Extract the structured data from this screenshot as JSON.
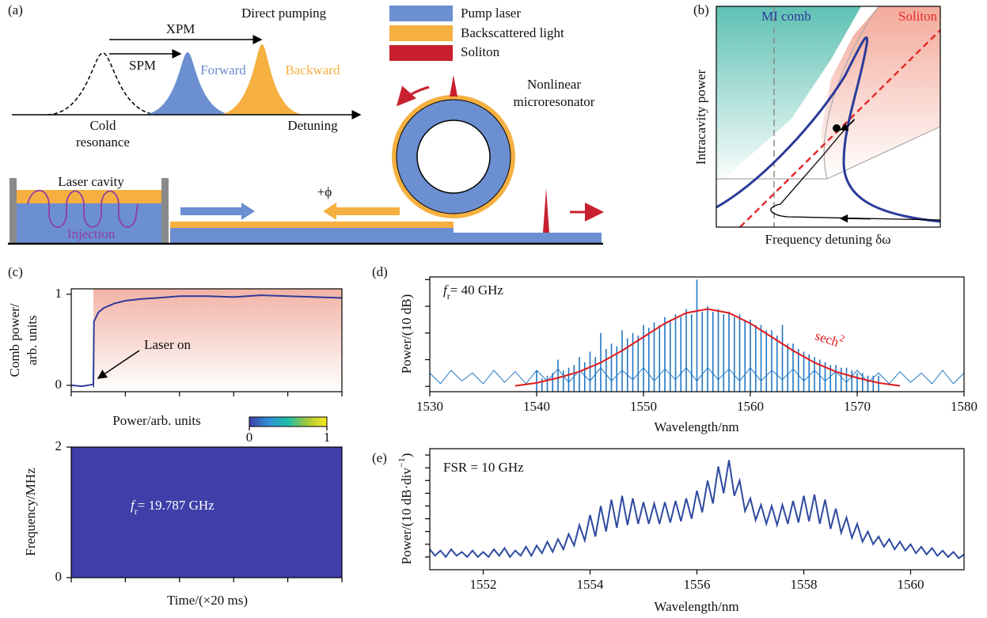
{
  "diagram_a": {
    "panel_label": "(a)",
    "title": "Direct pumping",
    "xpm": "XPM",
    "spm": "SPM",
    "forward": "Forward",
    "backward": "Backward",
    "cold": "Cold",
    "resonance": "resonance",
    "detuning": "Detuning",
    "legend": [
      "Pump laser",
      "Backscattered light",
      "Soliton"
    ],
    "ring_label": [
      "Nonlinear",
      "microresonator"
    ],
    "cavity": "Laser cavity",
    "injection": "Injection",
    "phase": "+ϕ"
  },
  "chart_data": [
    {
      "type": "schematic",
      "panel_label": "(b)",
      "xlabel": "Frequency detuning δω",
      "ylabel": "Intracavity power",
      "regions": [
        "MI comb",
        "Soliton"
      ]
    },
    {
      "type": "line",
      "panel_label": "(c)",
      "ylabel": [
        "Comb power/",
        "arb. units"
      ],
      "annotation": "Laser on",
      "x": [
        0,
        0.2,
        0.4,
        0.41,
        0.42,
        0.5,
        0.6,
        0.8,
        1.0,
        1.3,
        1.6,
        2.0,
        2.5,
        3.0,
        3.5,
        4.0,
        4.5,
        5.0
      ],
      "values": [
        0,
        -0.01,
        0.01,
        0,
        0.7,
        0.8,
        0.85,
        0.9,
        0.93,
        0.95,
        0.96,
        0.98,
        0.98,
        0.97,
        0.99,
        0.98,
        0.97,
        0.96
      ],
      "color": "#2f3a99",
      "highlight": {
        "x": 0.41,
        "color": "#f2b3a6"
      },
      "xlim": [
        0,
        5
      ],
      "xticks": [
        0,
        1,
        2,
        3,
        4,
        5
      ],
      "ylim": [
        -0.07,
        1.06
      ],
      "yticks": [
        0,
        1
      ]
    },
    {
      "type": "heatmap",
      "ylabel": "Frequency/MHz",
      "xlabel": "Time/(×20 ms)",
      "annotation": {
        "symbol": "f",
        "subscript": "r",
        "text": "= 19.787 GHz"
      },
      "trace": {
        "x": [
          0.41,
          5
        ],
        "values": [
          1.25,
          1.25
        ]
      },
      "colorbar": {
        "label": "Power/arb. units",
        "ticks": [
          0,
          1
        ],
        "colors": [
          "#3e3fa8",
          "#2f8fd8",
          "#1fbfa8",
          "#a8c93a",
          "#f9e920"
        ]
      },
      "xlim": [
        0,
        5
      ],
      "xticks": [
        0,
        1,
        2,
        3,
        4,
        5
      ],
      "ylim": [
        0,
        2
      ],
      "yticks": [
        0,
        2
      ]
    },
    {
      "type": "spectrum",
      "panel_label": "(d)",
      "xlabel": "Wavelength/nm",
      "ylabel": "Power/(10 dB)",
      "annotation": {
        "symbol": "f",
        "subscript": "r",
        "text": "= 40 GHz"
      },
      "xlim": [
        1530,
        1580
      ],
      "xticks": [
        1530,
        1540,
        1550,
        1560,
        1570,
        1580
      ],
      "ylim": [
        -0.2,
        4.1
      ],
      "yticks": [
        0,
        1,
        2,
        3,
        4
      ],
      "comb": {
        "color": "#1f77c4",
        "x": [
          1540,
          1540.5,
          1541,
          1541.5,
          1542,
          1542.5,
          1543,
          1543.5,
          1544,
          1544.5,
          1545,
          1545.5,
          1546,
          1546.5,
          1547,
          1547.5,
          1548,
          1548.5,
          1549,
          1549.5,
          1550,
          1550.5,
          1551,
          1551.5,
          1552,
          1552.5,
          1553,
          1553.5,
          1554,
          1554.5,
          1555,
          1555.5,
          1556,
          1556.5,
          1557,
          1557.5,
          1558,
          1558.5,
          1559,
          1559.5,
          1560,
          1560.5,
          1561,
          1561.5,
          1562,
          1562.5,
          1563,
          1563.5,
          1564,
          1564.5,
          1565,
          1565.5,
          1566,
          1566.5,
          1567,
          1567.5,
          1568,
          1568.5,
          1569,
          1569.5,
          1570,
          1570.5,
          1571,
          1571.5,
          1572
        ],
        "values": [
          0.6,
          0.3,
          0.4,
          0.5,
          1.0,
          0.6,
          0.7,
          0.8,
          1.1,
          0.9,
          1.3,
          1.1,
          2.0,
          1.4,
          1.6,
          1.5,
          2.1,
          1.8,
          2.0,
          1.9,
          2.3,
          2.2,
          2.4,
          2.3,
          2.6,
          2.5,
          2.7,
          2.6,
          2.9,
          2.7,
          4.0,
          2.8,
          3.0,
          2.8,
          2.9,
          2.7,
          2.8,
          2.6,
          2.7,
          2.5,
          2.5,
          2.3,
          2.3,
          2.1,
          2.1,
          1.9,
          2.3,
          1.6,
          1.6,
          1.4,
          1.3,
          1.2,
          1.1,
          1.0,
          0.9,
          0.8,
          0.8,
          0.7,
          0.7,
          0.6,
          0.5,
          0.5,
          0.4,
          0.4,
          0.4
        ]
      },
      "noise": {
        "color": "#1f77c4",
        "x": [
          1530,
          1531,
          1532,
          1533,
          1534,
          1535,
          1536,
          1537,
          1538,
          1539,
          1540,
          1541,
          1542,
          1543,
          1544,
          1545,
          1546,
          1547,
          1548,
          1549,
          1550,
          1551,
          1552,
          1553,
          1554,
          1555,
          1556,
          1557,
          1558,
          1559,
          1560,
          1561,
          1562,
          1563,
          1564,
          1565,
          1566,
          1567,
          1568,
          1569,
          1570,
          1571,
          1572,
          1573,
          1574,
          1575,
          1576,
          1577,
          1578,
          1579,
          1580
        ],
        "values": [
          0.5,
          0.1,
          0.6,
          0.2,
          0.5,
          0.1,
          0.6,
          0.15,
          0.55,
          0.1,
          0.6,
          0.2,
          0.65,
          0.15,
          0.6,
          0.2,
          0.7,
          0.2,
          0.6,
          0.25,
          0.7,
          0.2,
          0.65,
          0.25,
          0.7,
          0.2,
          0.7,
          0.25,
          0.65,
          0.2,
          0.7,
          0.2,
          0.6,
          0.25,
          0.65,
          0.2,
          0.6,
          0.2,
          0.55,
          0.15,
          0.6,
          0.15,
          0.5,
          0.1,
          0.55,
          0.15,
          0.5,
          0.1,
          0.6,
          0.1,
          0.5
        ]
      },
      "fit": {
        "label": {
          "text": "sech",
          "superscript": "2"
        },
        "color": "#e41a1c",
        "x": [
          1538,
          1540,
          1542,
          1544,
          1546,
          1548,
          1550,
          1552,
          1554,
          1556,
          1558,
          1560,
          1562,
          1564,
          1566,
          1568,
          1570,
          1572,
          1574
        ],
        "values": [
          0.02,
          0.13,
          0.32,
          0.55,
          0.89,
          1.34,
          1.85,
          2.36,
          2.75,
          2.9,
          2.75,
          2.36,
          1.85,
          1.34,
          0.89,
          0.55,
          0.32,
          0.13,
          0.02
        ]
      }
    },
    {
      "type": "line",
      "panel_label": "(e)",
      "xlabel": "Wavelength/nm",
      "ylabel": {
        "text": "Power/(10 dB·div",
        "superscript": "−1",
        "suffix": ")"
      },
      "annotation": "FSR = 10 GHz",
      "color": "#2f4aa0",
      "xlim": [
        1551,
        1561
      ],
      "xticks": [
        1552,
        1554,
        1556,
        1558,
        1560
      ],
      "ylim": [
        0,
        9.5
      ],
      "yticks": [
        1,
        2,
        3,
        4,
        5,
        6,
        7,
        8,
        9
      ],
      "x": [
        1551,
        1551.1,
        1551.2,
        1551.3,
        1551.4,
        1551.5,
        1551.6,
        1551.7,
        1551.8,
        1551.9,
        1552,
        1552.1,
        1552.2,
        1552.3,
        1552.4,
        1552.5,
        1552.6,
        1552.7,
        1552.8,
        1552.9,
        1553,
        1553.1,
        1553.2,
        1553.3,
        1553.4,
        1553.5,
        1553.6,
        1553.7,
        1553.8,
        1553.9,
        1554,
        1554.1,
        1554.2,
        1554.3,
        1554.4,
        1554.5,
        1554.6,
        1554.7,
        1554.8,
        1554.9,
        1555,
        1555.1,
        1555.2,
        1555.3,
        1555.4,
        1555.5,
        1555.6,
        1555.7,
        1555.8,
        1555.9,
        1556,
        1556.1,
        1556.2,
        1556.3,
        1556.4,
        1556.5,
        1556.6,
        1556.7,
        1556.8,
        1556.9,
        1557,
        1557.1,
        1557.2,
        1557.3,
        1557.4,
        1557.5,
        1557.6,
        1557.7,
        1557.8,
        1557.9,
        1558,
        1558.1,
        1558.2,
        1558.3,
        1558.4,
        1558.5,
        1558.6,
        1558.7,
        1558.8,
        1558.9,
        1559,
        1559.1,
        1559.2,
        1559.3,
        1559.4,
        1559.5,
        1559.6,
        1559.7,
        1559.8,
        1559.9,
        1560,
        1560.1,
        1560.2,
        1560.3,
        1560.4,
        1560.5,
        1560.6,
        1560.7,
        1560.8,
        1560.9,
        1561
      ],
      "values": [
        1.6,
        1.1,
        1.5,
        1.0,
        1.6,
        1.1,
        1.4,
        1.0,
        1.5,
        1.0,
        1.4,
        1.0,
        1.6,
        1.1,
        1.7,
        1.0,
        1.5,
        1.1,
        1.8,
        1.1,
        1.9,
        1.3,
        2.2,
        1.4,
        2.4,
        1.6,
        2.8,
        1.9,
        3.5,
        2.3,
        4.3,
        2.6,
        5.0,
        3.0,
        5.5,
        3.3,
        5.8,
        3.5,
        5.6,
        3.6,
        5.3,
        3.6,
        5.2,
        3.6,
        5.3,
        3.7,
        5.4,
        3.8,
        5.6,
        4.0,
        6.2,
        4.5,
        7.0,
        5.2,
        8.1,
        6.0,
        8.6,
        5.8,
        7.0,
        4.6,
        5.6,
        3.9,
        5.1,
        3.6,
        5.0,
        3.5,
        5.1,
        3.6,
        5.4,
        3.7,
        5.8,
        3.8,
        5.9,
        3.6,
        5.5,
        3.2,
        4.8,
        2.9,
        4.1,
        2.5,
        3.6,
        2.2,
        3.0,
        2.0,
        2.6,
        1.8,
        2.4,
        1.6,
        2.2,
        1.5,
        2.0,
        1.3,
        1.8,
        1.2,
        1.7,
        1.1,
        1.5,
        1.0,
        1.4,
        0.9,
        1.2
      ]
    }
  ]
}
